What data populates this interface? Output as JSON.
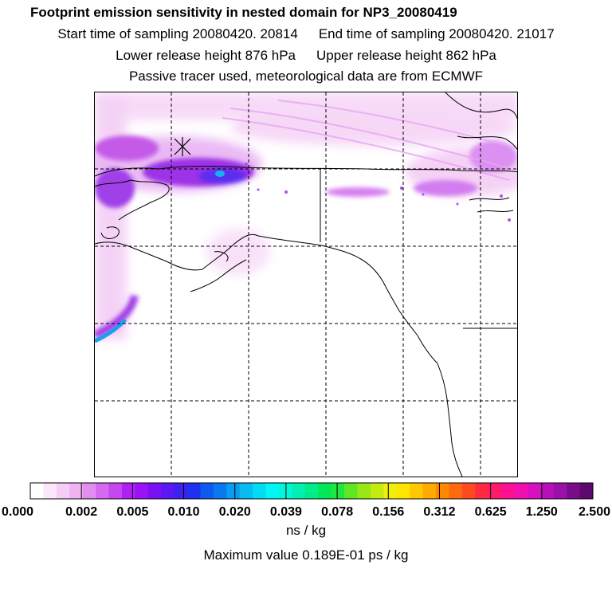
{
  "title": "Footprint emission sensitivity in nested domain for NP3_20080419",
  "start_label": "Start time of sampling 20080420. 20814",
  "end_label": "End time of sampling 20080420. 21017",
  "lower_label": "Lower release height  876 hPa",
  "upper_label": "Upper release height  862 hPa",
  "tracer_label": "Passive tracer used, meteorological data are from ECMWF",
  "colorbar": {
    "ticks": [
      "0.000",
      "0.002",
      "0.005",
      "0.010",
      "0.020",
      "0.039",
      "0.078",
      "0.156",
      "0.312",
      "0.625",
      "1.250",
      "2.500"
    ],
    "colors": [
      "#ffffff",
      "#fbe6fb",
      "#f6cdf6",
      "#f0b3f2",
      "#e28ef0",
      "#d56af0",
      "#c447f2",
      "#b01ff3",
      "#9a12f5",
      "#7a10f3",
      "#5a18f2",
      "#3b22f0",
      "#2030f0",
      "#0d5af0",
      "#0a78f0",
      "#0a9cf0",
      "#08bcf2",
      "#00dcf4",
      "#00f6f4",
      "#00f6d8",
      "#00f0b4",
      "#00ec88",
      "#00e85a",
      "#20e640",
      "#60e624",
      "#96e816",
      "#c4ec10",
      "#eef00c",
      "#ffe400",
      "#ffc800",
      "#ffaa00",
      "#ff8800",
      "#ff6a10",
      "#ff4a20",
      "#ff2a40",
      "#ff1a6a",
      "#ff1090",
      "#f010b0",
      "#d810c0",
      "#b810b8",
      "#9a10a8",
      "#7a0c8c",
      "#5c0a70"
    ]
  },
  "units_label": "ns / kg",
  "max_label": "Maximum value  0.189E-01 ps / kg"
}
